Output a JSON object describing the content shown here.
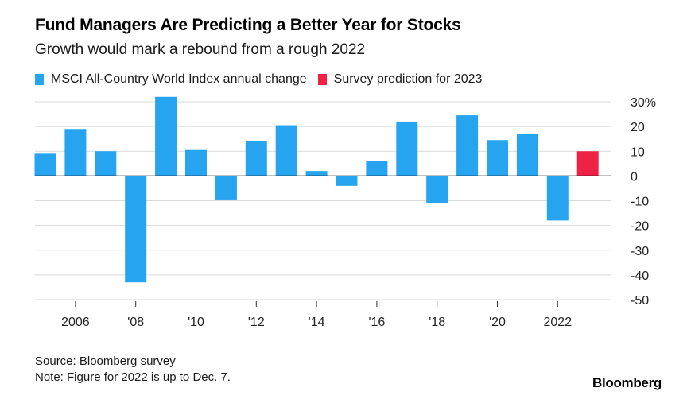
{
  "header": {
    "title": "Fund Managers Are Predicting a Better Year for Stocks",
    "subtitle": "Growth would mark a rebound from a rough 2022"
  },
  "legend": {
    "series_a": "MSCI All-Country World Index annual change",
    "series_b": "Survey prediction for 2023"
  },
  "colors": {
    "series_a": "#26a4f0",
    "series_b": "#ee2244",
    "grid": "#d9d9d9",
    "zero": "#000000",
    "text": "#222222"
  },
  "chart_data": {
    "type": "bar",
    "title": "Fund Managers Are Predicting a Better Year for Stocks",
    "subtitle": "Growth would mark a rebound from a rough 2022",
    "categories": [
      "2005",
      "2006",
      "2007",
      "2008",
      "2009",
      "2010",
      "2011",
      "2012",
      "2013",
      "2014",
      "2015",
      "2016",
      "2017",
      "2018",
      "2019",
      "2020",
      "2021",
      "2022",
      "2023"
    ],
    "series": [
      {
        "name": "MSCI All-Country World Index annual change",
        "values": [
          9,
          19,
          10,
          -43,
          32,
          10.5,
          -9.5,
          14,
          20.5,
          2,
          -4,
          6,
          22,
          -11,
          24.5,
          14.5,
          17,
          -18,
          null
        ]
      },
      {
        "name": "Survey prediction for 2023",
        "values": [
          null,
          null,
          null,
          null,
          null,
          null,
          null,
          null,
          null,
          null,
          null,
          null,
          null,
          null,
          null,
          null,
          null,
          null,
          10
        ]
      }
    ],
    "x_tick_labels": [
      "2006",
      "'08",
      "'10",
      "'12",
      "'14",
      "'16",
      "'18",
      "'20",
      "2022"
    ],
    "x_tick_years": [
      2006,
      2008,
      2010,
      2012,
      2014,
      2016,
      2018,
      2020,
      2022
    ],
    "y_tick_labels": [
      "30%",
      "20",
      "10",
      "0",
      "-10",
      "-20",
      "-30",
      "-40",
      "-50"
    ],
    "y_ticks": [
      30,
      20,
      10,
      0,
      -10,
      -20,
      -30,
      -40,
      -50
    ],
    "ylim": [
      -50,
      30
    ],
    "xlabel": "",
    "ylabel": "",
    "grid": true,
    "legend_position": "top-left"
  },
  "footer": {
    "source": "Source: Bloomberg survey",
    "note": "Note: Figure for 2022 is up to Dec. 7.",
    "brand": "Bloomberg"
  }
}
